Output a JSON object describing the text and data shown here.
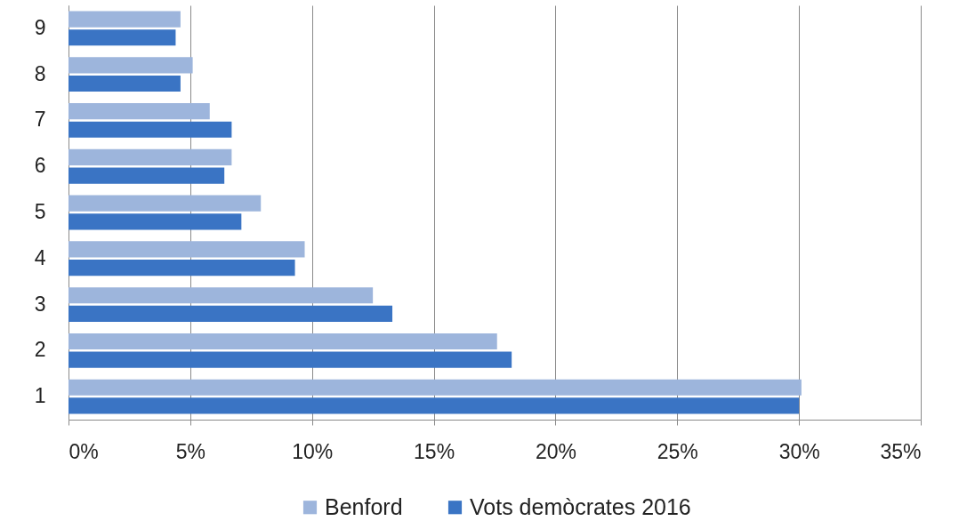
{
  "chart_data": {
    "type": "bar",
    "orientation": "horizontal",
    "categories": [
      "9",
      "8",
      "7",
      "6",
      "5",
      "4",
      "3",
      "2",
      "1"
    ],
    "series": [
      {
        "name": "Benford",
        "color": "#9db5dc",
        "values": [
          4.6,
          5.1,
          5.8,
          6.7,
          7.9,
          9.7,
          12.5,
          17.6,
          30.1
        ]
      },
      {
        "name": "Vots demòcrates 2016",
        "color": "#3a74c4",
        "values": [
          4.4,
          4.6,
          6.7,
          6.4,
          7.1,
          9.3,
          13.3,
          18.2,
          30.0
        ]
      }
    ],
    "xlim": [
      0,
      35
    ],
    "xticks": [
      {
        "value": 0,
        "label": "0%"
      },
      {
        "value": 5,
        "label": "5%"
      },
      {
        "value": 10,
        "label": "10%"
      },
      {
        "value": 15,
        "label": "15%"
      },
      {
        "value": 20,
        "label": "20%"
      },
      {
        "value": 25,
        "label": "25%"
      },
      {
        "value": 30,
        "label": "30%"
      },
      {
        "value": 35,
        "label": "35%"
      }
    ],
    "grid": "x",
    "legend": "bottom"
  }
}
